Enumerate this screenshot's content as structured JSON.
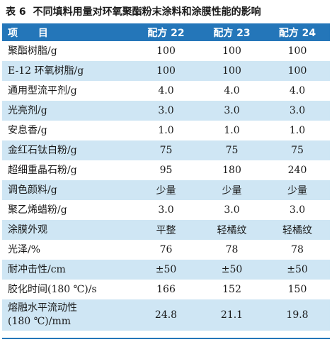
{
  "title": {
    "number": "表 6",
    "text": "不同填料用量对环氧聚酯粉末涂料和涂膜性能的影响"
  },
  "header": [
    "项 目",
    "配方 22",
    "配方 23",
    "配方 24"
  ],
  "rows": [
    {
      "label": "聚酯树脂/g",
      "values": [
        "100",
        "100",
        "100"
      ]
    },
    {
      "label": "E-12 环氧树脂/g",
      "values": [
        "100",
        "100",
        "100"
      ]
    },
    {
      "label": "通用型流平剂/g",
      "values": [
        "4.0",
        "4.0",
        "4.0"
      ]
    },
    {
      "label": "光亮剂/g",
      "values": [
        "3.0",
        "3.0",
        "3.0"
      ]
    },
    {
      "label": "安息香/g",
      "values": [
        "1.0",
        "1.0",
        "1.0"
      ]
    },
    {
      "label": "金红石钛白粉/g",
      "values": [
        "75",
        "75",
        "75"
      ]
    },
    {
      "label": "超细重晶石粉/g",
      "values": [
        "95",
        "180",
        "240"
      ]
    },
    {
      "label": "调色颜料/g",
      "values": [
        "少量",
        "少量",
        "少量"
      ]
    },
    {
      "label": "聚乙烯蜡粉/g",
      "values": [
        "3.0",
        "3.0",
        "3.0"
      ]
    },
    {
      "label": "涂膜外观",
      "values": [
        "平整",
        "轻橘纹",
        "轻橘纹"
      ]
    },
    {
      "label": "光泽/%",
      "values": [
        "76",
        "78",
        "78"
      ]
    },
    {
      "label": "耐冲击性/cm",
      "values": [
        "±50",
        "±50",
        "±50"
      ]
    },
    {
      "label": "胶化时间(180 ℃)/s",
      "values": [
        "166",
        "152",
        "150"
      ]
    },
    {
      "label_lines": [
        "熔融水平流动性",
        "(180 ℃)/mm"
      ],
      "values": [
        "24.8",
        "21.1",
        "19.8"
      ]
    }
  ],
  "colors": {
    "header_bg": "#2476b9",
    "stripe_bg": "#cfe6f4",
    "header_text": "#ffffff"
  }
}
